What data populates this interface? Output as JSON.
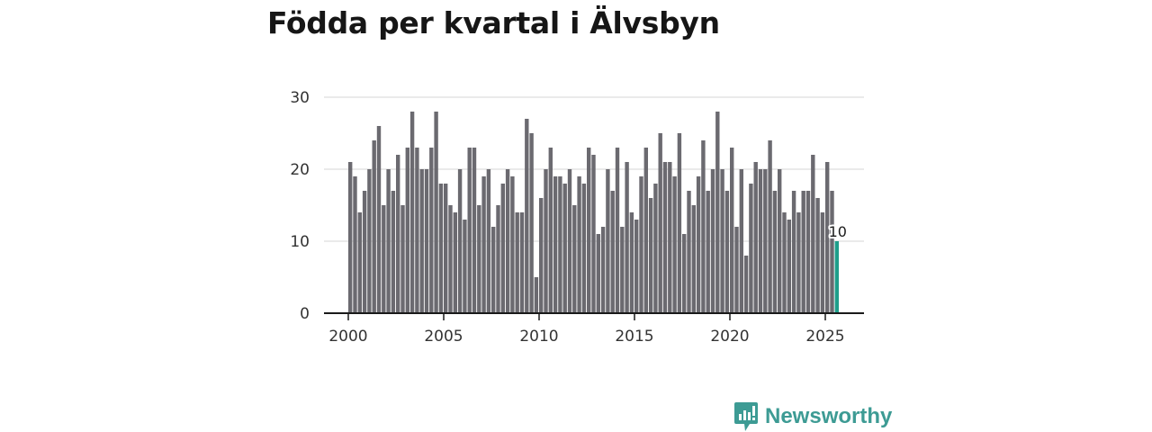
{
  "title": "Födda per kvartal i Älvsbyn",
  "brand": {
    "name": "Newsworthy",
    "icon": "newsworthy-logo-icon"
  },
  "colors": {
    "bar": "#6b6a70",
    "highlight": "#1f9e8a",
    "grid": "#d6d6d6",
    "axis": "#1a1a1a",
    "brand": "#3d9b94"
  },
  "chart_data": {
    "type": "bar",
    "title": "Födda per kvartal i Älvsbyn",
    "xlabel": "",
    "ylabel": "",
    "x_start": 2000,
    "quarters_per_year": 4,
    "ylim": [
      0,
      30
    ],
    "y_ticks": [
      0,
      10,
      20,
      30
    ],
    "x_ticks": [
      2000,
      2005,
      2010,
      2015,
      2020,
      2025
    ],
    "grid": true,
    "values": [
      21,
      19,
      14,
      17,
      20,
      24,
      26,
      15,
      20,
      17,
      22,
      15,
      23,
      28,
      23,
      20,
      20,
      23,
      28,
      18,
      18,
      15,
      14,
      20,
      13,
      23,
      23,
      15,
      19,
      20,
      12,
      15,
      18,
      20,
      19,
      14,
      14,
      27,
      25,
      5,
      16,
      20,
      23,
      19,
      19,
      18,
      20,
      15,
      19,
      18,
      23,
      22,
      11,
      12,
      20,
      17,
      23,
      12,
      21,
      14,
      13,
      19,
      23,
      16,
      18,
      25,
      21,
      21,
      19,
      25,
      11,
      17,
      15,
      19,
      24,
      17,
      20,
      28,
      20,
      17,
      23,
      12,
      20,
      8,
      18,
      21,
      20,
      20,
      24,
      17,
      20,
      14,
      13,
      17,
      14,
      17,
      17,
      22,
      16,
      14,
      21,
      17,
      10
    ],
    "highlight_label": "10"
  }
}
